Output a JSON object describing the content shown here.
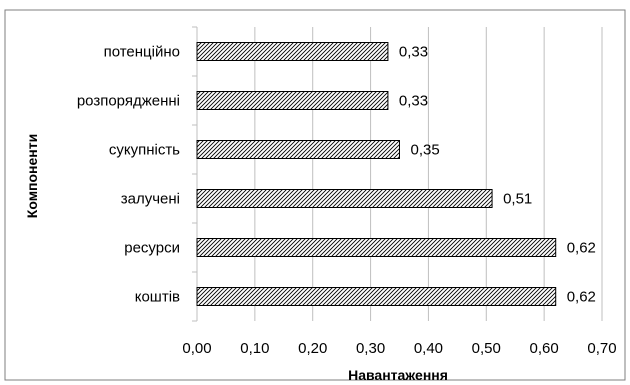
{
  "chart_data": {
    "type": "bar",
    "orientation": "horizontal",
    "categories": [
      "потенційно",
      "розпорядженні",
      "сукупність",
      "залучені",
      "ресурси",
      "коштів"
    ],
    "values": [
      0.33,
      0.33,
      0.35,
      0.51,
      0.62,
      0.62
    ],
    "data_labels": [
      "0,33",
      "0,33",
      "0,35",
      "0,51",
      "0,62",
      "0,62"
    ],
    "xlabel": "Навантаження",
    "ylabel": "Компоненти",
    "xlim": [
      0,
      0.7
    ],
    "x_ticks": [
      0,
      0.1,
      0.2,
      0.3,
      0.4,
      0.5,
      0.6,
      0.7
    ],
    "x_tick_labels": [
      "0,00",
      "0,10",
      "0,20",
      "0,30",
      "0,40",
      "0,50",
      "0,60",
      "0,70"
    ],
    "grid": "vertical",
    "bar_fill": "diagonal-hatch",
    "colors": {
      "grid": "#bfbfbf",
      "bar_stroke": "#000000",
      "hatch": "#000000",
      "border": "#7f7f7f"
    }
  }
}
